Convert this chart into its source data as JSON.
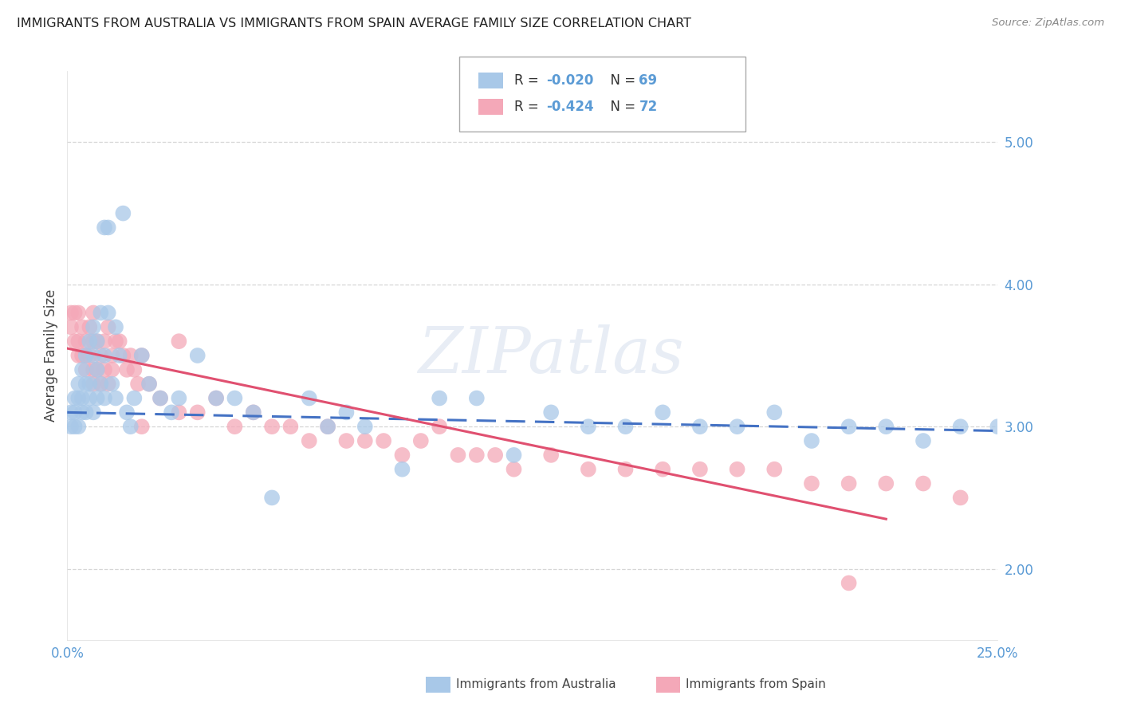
{
  "title": "IMMIGRANTS FROM AUSTRALIA VS IMMIGRANTS FROM SPAIN AVERAGE FAMILY SIZE CORRELATION CHART",
  "source": "Source: ZipAtlas.com",
  "ylabel": "Average Family Size",
  "yticks_right": [
    2.0,
    3.0,
    4.0,
    5.0
  ],
  "xlim": [
    0.0,
    0.25
  ],
  "ylim": [
    1.5,
    5.5
  ],
  "watermark": "ZIPatlas",
  "legend_entries": [
    {
      "label_r": "R = ",
      "label_r_val": "-0.020",
      "label_n": "  N = ",
      "label_n_val": "69",
      "color": "#a8c8e8"
    },
    {
      "label_r": "R = ",
      "label_r_val": "-0.424",
      "label_n": "  N = ",
      "label_n_val": "72",
      "color": "#f4a8b8"
    }
  ],
  "legend_label_australia": "Immigrants from Australia",
  "legend_label_spain": "Immigrants from Spain",
  "color_australia": "#a8c8e8",
  "color_spain": "#f4a8b8",
  "color_line_australia": "#4472c4",
  "color_line_spain": "#e05070",
  "color_axis": "#5b9bd5",
  "color_grid": "#cccccc",
  "australia_x": [
    0.001,
    0.001,
    0.002,
    0.002,
    0.002,
    0.003,
    0.003,
    0.003,
    0.004,
    0.004,
    0.004,
    0.005,
    0.005,
    0.005,
    0.006,
    0.006,
    0.006,
    0.007,
    0.007,
    0.007,
    0.008,
    0.008,
    0.008,
    0.009,
    0.009,
    0.01,
    0.01,
    0.01,
    0.011,
    0.011,
    0.012,
    0.013,
    0.013,
    0.014,
    0.015,
    0.016,
    0.017,
    0.018,
    0.02,
    0.022,
    0.025,
    0.028,
    0.03,
    0.035,
    0.04,
    0.045,
    0.05,
    0.055,
    0.065,
    0.07,
    0.075,
    0.08,
    0.09,
    0.1,
    0.11,
    0.12,
    0.13,
    0.14,
    0.15,
    0.16,
    0.17,
    0.18,
    0.19,
    0.2,
    0.21,
    0.22,
    0.23,
    0.24,
    0.25
  ],
  "australia_y": [
    3.1,
    3.0,
    3.2,
    3.0,
    3.1,
    3.3,
    3.0,
    3.2,
    3.4,
    3.1,
    3.2,
    3.5,
    3.3,
    3.1,
    3.6,
    3.3,
    3.2,
    3.7,
    3.5,
    3.1,
    3.6,
    3.4,
    3.2,
    3.8,
    3.3,
    4.4,
    3.5,
    3.2,
    3.8,
    4.4,
    3.3,
    3.7,
    3.2,
    3.5,
    4.5,
    3.1,
    3.0,
    3.2,
    3.5,
    3.3,
    3.2,
    3.1,
    3.2,
    3.5,
    3.2,
    3.2,
    3.1,
    2.5,
    3.2,
    3.0,
    3.1,
    3.0,
    2.7,
    3.2,
    3.2,
    2.8,
    3.1,
    3.0,
    3.0,
    3.1,
    3.0,
    3.0,
    3.1,
    2.9,
    3.0,
    3.0,
    2.9,
    3.0,
    3.0
  ],
  "spain_x": [
    0.001,
    0.001,
    0.002,
    0.002,
    0.003,
    0.003,
    0.003,
    0.004,
    0.004,
    0.005,
    0.005,
    0.005,
    0.006,
    0.006,
    0.007,
    0.007,
    0.007,
    0.008,
    0.008,
    0.009,
    0.009,
    0.01,
    0.01,
    0.011,
    0.011,
    0.012,
    0.012,
    0.013,
    0.014,
    0.015,
    0.016,
    0.017,
    0.018,
    0.019,
    0.02,
    0.022,
    0.025,
    0.03,
    0.035,
    0.04,
    0.045,
    0.05,
    0.055,
    0.06,
    0.065,
    0.07,
    0.075,
    0.08,
    0.085,
    0.09,
    0.095,
    0.1,
    0.105,
    0.11,
    0.115,
    0.12,
    0.13,
    0.14,
    0.15,
    0.16,
    0.17,
    0.18,
    0.19,
    0.2,
    0.21,
    0.22,
    0.23,
    0.24,
    0.007,
    0.02,
    0.03,
    0.21
  ],
  "spain_y": [
    3.7,
    3.8,
    3.8,
    3.6,
    3.6,
    3.5,
    3.8,
    3.7,
    3.5,
    3.6,
    3.5,
    3.4,
    3.7,
    3.5,
    3.8,
    3.6,
    3.4,
    3.6,
    3.4,
    3.5,
    3.3,
    3.6,
    3.4,
    3.7,
    3.3,
    3.5,
    3.4,
    3.6,
    3.6,
    3.5,
    3.4,
    3.5,
    3.4,
    3.3,
    3.5,
    3.3,
    3.2,
    3.1,
    3.1,
    3.2,
    3.0,
    3.1,
    3.0,
    3.0,
    2.9,
    3.0,
    2.9,
    2.9,
    2.9,
    2.8,
    2.9,
    3.0,
    2.8,
    2.8,
    2.8,
    2.7,
    2.8,
    2.7,
    2.7,
    2.7,
    2.7,
    2.7,
    2.7,
    2.6,
    2.6,
    2.6,
    2.6,
    2.5,
    3.3,
    3.0,
    3.6,
    1.9
  ],
  "aus_trend_x": [
    0.0,
    0.25
  ],
  "aus_trend_y": [
    3.1,
    2.97
  ],
  "esp_trend_x": [
    0.0,
    0.22
  ],
  "esp_trend_y": [
    3.55,
    2.35
  ]
}
